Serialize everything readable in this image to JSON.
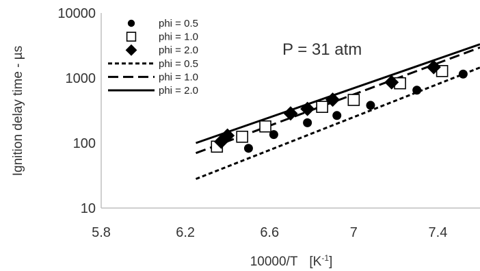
{
  "chart_data": {
    "type": "scatter",
    "xlabel": "10000/T",
    "xlabel_unit": "[K",
    "xlabel_unit_sup": "-1",
    "xlabel_unit_close": "]",
    "ylabel": "Ignition delay time - µs",
    "xlim": [
      5.8,
      7.6
    ],
    "ylim": [
      10,
      10000
    ],
    "yscale": "log",
    "xticks": [
      "5.8",
      "6.2",
      "6.6",
      "7",
      "7.4"
    ],
    "yticks": [
      "10",
      "100",
      "1000",
      "10000"
    ],
    "grid": false,
    "annotation": "P = 31 atm",
    "legend_position": "top-left",
    "colors": {
      "series": "#000000",
      "axis": "#bfbfbf",
      "text": "#333333"
    },
    "series": [
      {
        "name": "phi = 0.5",
        "marker": "circle",
        "points": [
          [
            6.5,
            83
          ],
          [
            6.62,
            135
          ],
          [
            6.78,
            205
          ],
          [
            6.92,
            265
          ],
          [
            7.08,
            380
          ],
          [
            7.3,
            650
          ],
          [
            7.52,
            1150
          ]
        ]
      },
      {
        "name": "phi = 1.0",
        "marker": "square",
        "points": [
          [
            6.35,
            88
          ],
          [
            6.47,
            125
          ],
          [
            6.58,
            180
          ],
          [
            6.85,
            360
          ],
          [
            7.0,
            460
          ],
          [
            7.22,
            830
          ],
          [
            7.42,
            1280
          ]
        ]
      },
      {
        "name": "phi = 2.0",
        "marker": "diamond",
        "points": [
          [
            6.37,
            105
          ],
          [
            6.4,
            130
          ],
          [
            6.7,
            285
          ],
          [
            6.78,
            335
          ],
          [
            6.9,
            465
          ],
          [
            7.18,
            860
          ],
          [
            7.38,
            1470
          ]
        ]
      },
      {
        "name": "phi = 0.5",
        "line": "short-dash",
        "points": [
          [
            6.25,
            28
          ],
          [
            7.6,
            1450
          ]
        ]
      },
      {
        "name": "phi = 1.0",
        "line": "long-dash",
        "points": [
          [
            6.25,
            70
          ],
          [
            7.6,
            2950
          ]
        ]
      },
      {
        "name": "phi = 2.0",
        "line": "solid",
        "points": [
          [
            6.25,
            100
          ],
          [
            7.6,
            3300
          ]
        ]
      }
    ]
  }
}
